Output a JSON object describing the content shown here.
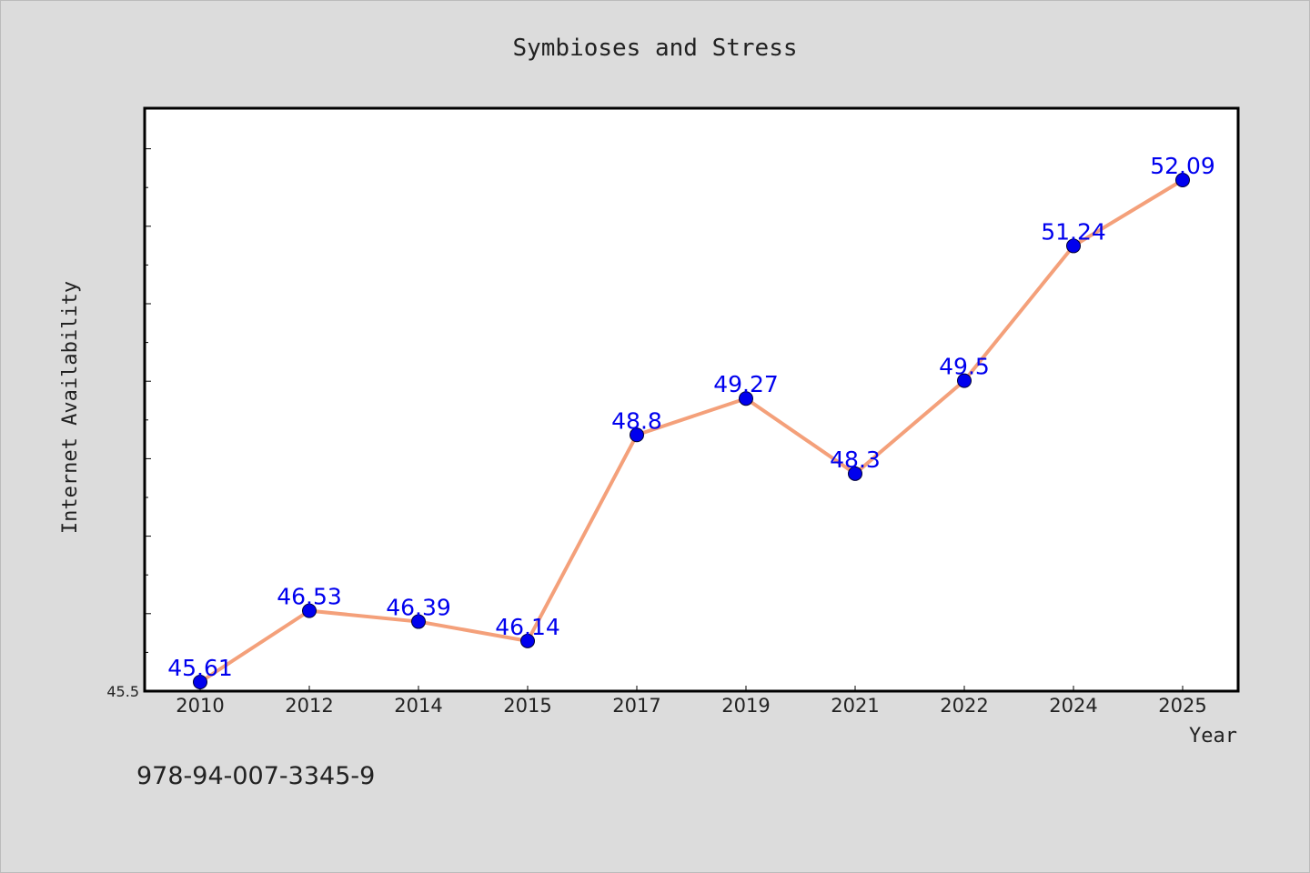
{
  "chart_data": {
    "type": "line",
    "title": "Symbioses and Stress",
    "xlabel": "Year",
    "ylabel": "Internet Availability",
    "categories": [
      "2010",
      "2012",
      "2014",
      "2015",
      "2017",
      "2019",
      "2021",
      "2022",
      "2024",
      "2025"
    ],
    "series": [
      {
        "values": [
          45.61,
          46.53,
          46.39,
          46.14,
          48.8,
          49.27,
          48.3,
          49.5,
          51.24,
          52.09
        ],
        "data_labels": [
          "45.61",
          "46.53",
          "46.39",
          "46.14",
          "48.8",
          "49.27",
          "48.3",
          "49.5",
          "51.24",
          "52.09"
        ]
      }
    ],
    "ylim": [
      45.5,
      53.0
    ],
    "y_tick_label": "45.5",
    "grid": false,
    "legend": "none",
    "colors": {
      "line": "#f4a07a",
      "marker": "#0000ee",
      "data_label": "#0000ee",
      "background": "#dcdcdc",
      "plot_background": "#ffffff"
    }
  },
  "footer": {
    "isbn": "978-94-007-3345-9"
  }
}
